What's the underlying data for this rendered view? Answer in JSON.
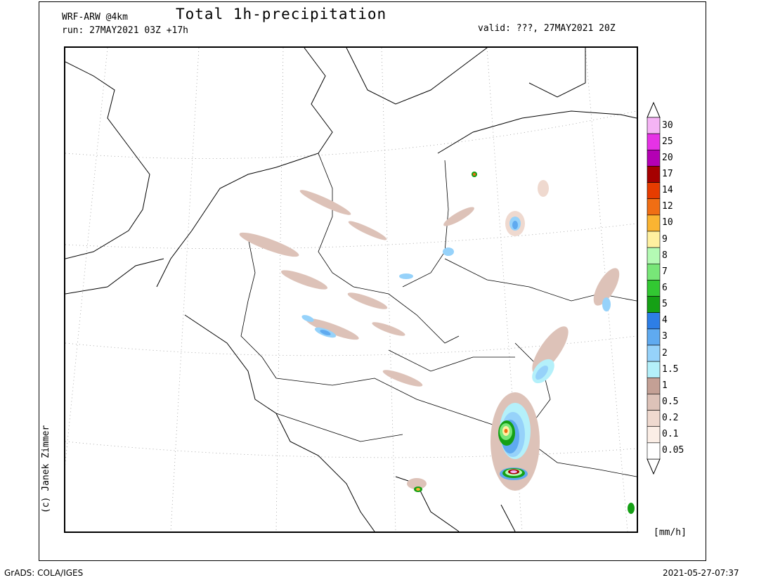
{
  "header": {
    "title": "Total 1h-precipitation",
    "model": "WRF-ARW @4km",
    "run": "run: 27MAY2021 03Z +17h",
    "valid": "valid: ???, 27MAY2021 20Z"
  },
  "credit": "(c) Janek Zimmer",
  "unit": "[mm/h]",
  "footer": {
    "software": "GrADS: COLA/IGES",
    "timestamp": "2021-05-27-07:37"
  },
  "colorbar": {
    "levels": [
      "0.05",
      "0.1",
      "0.2",
      "0.5",
      "1",
      "1.5",
      "2",
      "3",
      "4",
      "5",
      "6",
      "7",
      "8",
      "9",
      "10",
      "12",
      "14",
      "17",
      "20",
      "25",
      "30"
    ],
    "colors": [
      "#ffffff",
      "#fbeee6",
      "#efd9cf",
      "#ddc2b8",
      "#c4a095",
      "#b4f0fa",
      "#96d2fa",
      "#5faaf0",
      "#2d7ee6",
      "#15a015",
      "#32c832",
      "#78e678",
      "#b4fab4",
      "#fff0a0",
      "#fab432",
      "#f06e14",
      "#e63c00",
      "#a50000",
      "#b400b4",
      "#e632e6",
      "#f5b4f5"
    ]
  },
  "map": {
    "cells": [
      {
        "mm": 0.2
      },
      {
        "mm": 0.5
      },
      {
        "mm": 1.5
      },
      {
        "mm": 3
      },
      {
        "mm": 5
      },
      {
        "mm": 8
      },
      {
        "mm": 14
      },
      {
        "mm": 25
      }
    ]
  }
}
